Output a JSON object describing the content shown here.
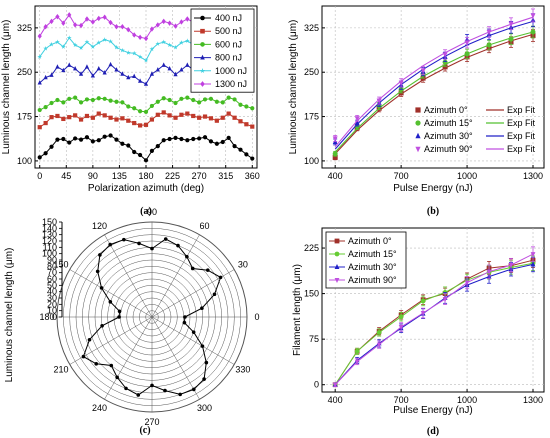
{
  "chart_data": [
    {
      "id": "a",
      "type": "line",
      "panel_label": "(a)",
      "xlabel": "Polarization azimuth (deg)",
      "ylabel": "Luminous channel length (μm)",
      "xlim": [
        -8,
        368
      ],
      "ylim": [
        88,
        362
      ],
      "xticks": [
        0,
        45,
        90,
        135,
        180,
        225,
        270,
        315,
        360
      ],
      "yticks": [
        100,
        175,
        250,
        325
      ],
      "grid": true,
      "legend_position": "top-right",
      "x": [
        0,
        10,
        20,
        30,
        40,
        50,
        60,
        70,
        80,
        90,
        100,
        110,
        120,
        130,
        140,
        150,
        160,
        170,
        180,
        190,
        200,
        210,
        220,
        230,
        240,
        250,
        260,
        270,
        280,
        290,
        300,
        310,
        320,
        330,
        340,
        350,
        360
      ],
      "series": [
        {
          "name": "400 nJ",
          "color": "#000000",
          "marker": "circle",
          "values": [
            106,
            113,
            124,
            136,
            137,
            131,
            138,
            136,
            140,
            133,
            135,
            141,
            143,
            136,
            129,
            126,
            115,
            110,
            101,
            117,
            125,
            135,
            137,
            139,
            137,
            135,
            137,
            138,
            140,
            133,
            129,
            132,
            139,
            125,
            119,
            111,
            104
          ]
        },
        {
          "name": "500 nJ",
          "color": "#c0392b",
          "marker": "square",
          "values": [
            157,
            164,
            174,
            176,
            171,
            174,
            177,
            170,
            176,
            173,
            180,
            177,
            173,
            170,
            172,
            168,
            164,
            160,
            161,
            170,
            178,
            182,
            177,
            173,
            178,
            180,
            176,
            173,
            175,
            172,
            168,
            173,
            180,
            173,
            167,
            162,
            158
          ]
        },
        {
          "name": "600 nJ",
          "color": "#44bb22",
          "marker": "circle",
          "values": [
            186,
            191,
            198,
            203,
            199,
            205,
            207,
            199,
            204,
            203,
            206,
            205,
            202,
            200,
            199,
            192,
            189,
            184,
            183,
            193,
            200,
            206,
            203,
            198,
            205,
            207,
            203,
            199,
            204,
            205,
            200,
            199,
            207,
            204,
            195,
            192,
            189
          ]
        },
        {
          "name": "800 nJ",
          "color": "#1f1fb4",
          "marker": "triangle",
          "values": [
            232,
            241,
            245,
            259,
            253,
            262,
            256,
            247,
            259,
            244,
            256,
            249,
            263,
            254,
            247,
            241,
            243,
            235,
            230,
            247,
            254,
            262,
            256,
            246,
            254,
            262,
            254,
            246,
            250,
            259,
            252,
            240,
            253,
            254,
            238,
            235,
            232
          ]
        },
        {
          "name": "1000 nJ",
          "color": "#40d0e0",
          "marker": "star",
          "values": [
            276,
            290,
            297,
            301,
            293,
            308,
            296,
            291,
            301,
            293,
            300,
            305,
            302,
            292,
            287,
            283,
            282,
            276,
            270,
            289,
            298,
            301,
            296,
            292,
            300,
            303,
            297,
            289,
            300,
            304,
            295,
            286,
            301,
            297,
            285,
            282,
            279
          ]
        },
        {
          "name": "1300 nJ",
          "color": "#c040e0",
          "marker": "diamond",
          "values": [
            311,
            327,
            336,
            344,
            333,
            347,
            330,
            329,
            340,
            335,
            341,
            343,
            334,
            327,
            327,
            322,
            313,
            309,
            307,
            323,
            330,
            336,
            333,
            328,
            335,
            340,
            335,
            327,
            335,
            340,
            331,
            325,
            338,
            333,
            323,
            319,
            312
          ]
        }
      ]
    },
    {
      "id": "b",
      "type": "scatter",
      "panel_label": "(b)",
      "xlabel": "Pulse Energy (nJ)",
      "ylabel": "Luminous channel length (μm)",
      "xlim": [
        340,
        1350
      ],
      "ylim": [
        88,
        362
      ],
      "xticks": [
        400,
        700,
        1000,
        1300
      ],
      "yticks": [
        100,
        175,
        250,
        325
      ],
      "grid": true,
      "legend_position": "bottom-right",
      "x": [
        400,
        500,
        600,
        700,
        800,
        900,
        1000,
        1100,
        1200,
        1300
      ],
      "series": [
        {
          "name": "Azimuth 0°",
          "color": "#a0302a",
          "marker": "square",
          "values": [
            106,
            156,
            189,
            215,
            240,
            259,
            276,
            291,
            301,
            312
          ],
          "err": [
            4,
            5,
            6,
            6,
            7,
            7,
            8,
            8,
            9,
            10
          ],
          "fit": [
            112,
            152,
            185,
            213,
            237,
            257,
            275,
            290,
            303,
            314
          ]
        },
        {
          "name": "Azimuth 15°",
          "color": "#55c030",
          "marker": "circle",
          "values": [
            112,
            158,
            193,
            221,
            247,
            267,
            281,
            296,
            306,
            318
          ],
          "err": [
            4,
            5,
            6,
            6,
            7,
            7,
            8,
            8,
            9,
            10
          ],
          "fit": [
            115,
            155,
            189,
            218,
            243,
            263,
            281,
            296,
            308,
            318
          ]
        },
        {
          "name": "Azimuth 30°",
          "color": "#2020c8",
          "marker": "triangle",
          "values": [
            132,
            164,
            198,
            228,
            251,
            276,
            305,
            314,
            326,
            338
          ],
          "err": [
            5,
            5,
            6,
            7,
            7,
            8,
            9,
            9,
            10,
            11
          ],
          "fit": [
            120,
            162,
            198,
            229,
            255,
            277,
            296,
            312,
            325,
            336
          ]
        },
        {
          "name": "Azimuth 90°",
          "color": "#c050e0",
          "marker": "triangle-down",
          "values": [
            138,
            172,
            202,
            232,
            253,
            280,
            300,
            318,
            332,
            346
          ],
          "err": [
            5,
            5,
            6,
            7,
            7,
            8,
            9,
            9,
            10,
            11
          ],
          "fit": [
            124,
            168,
            204,
            235,
            261,
            283,
            302,
            318,
            331,
            343
          ]
        }
      ],
      "legend_fit_label": "Exp Fit"
    },
    {
      "id": "c",
      "type": "polar",
      "panel_label": "(c)",
      "ylabel": "Luminous channel length (μm)",
      "radial_ticks": [
        0,
        10,
        20,
        30,
        40,
        50,
        60,
        70,
        80,
        90,
        100,
        110,
        120,
        130,
        140,
        150
      ],
      "angle_ticks": [
        0,
        30,
        60,
        90,
        120,
        150,
        180,
        210,
        240,
        270,
        300,
        330
      ],
      "rmax": 150,
      "angles": [
        0,
        10,
        20,
        30,
        40,
        50,
        60,
        70,
        80,
        90,
        100,
        110,
        120,
        130,
        140,
        150,
        160,
        170,
        180,
        190,
        200,
        210,
        220,
        230,
        240,
        250,
        260,
        270,
        280,
        290,
        300,
        310,
        320,
        330,
        340,
        350
      ],
      "values": [
        52,
        80,
        105,
        125,
        115,
        100,
        110,
        120,
        125,
        108,
        118,
        130,
        132,
        128,
        112,
        92,
        70,
        52,
        52,
        80,
        105,
        125,
        115,
        100,
        110,
        120,
        125,
        108,
        118,
        130,
        132,
        128,
        112,
        92,
        70,
        52
      ]
    },
    {
      "id": "d",
      "type": "scatter",
      "panel_label": "(d)",
      "xlabel": "Pulse Energy (nJ)",
      "ylabel": "Filament length (μm)",
      "xlim": [
        340,
        1350
      ],
      "ylim": [
        -12,
        258
      ],
      "xticks": [
        400,
        700,
        1000,
        1300
      ],
      "yticks": [
        0,
        75,
        150,
        225
      ],
      "grid": true,
      "legend_position": "top-left",
      "x": [
        400,
        500,
        600,
        700,
        800,
        900,
        1000,
        1100,
        1200,
        1300
      ],
      "series": [
        {
          "name": "Azimuth 0°",
          "color": "#a0302a",
          "marker": "square",
          "values": [
            0,
            55,
            88,
            115,
            140,
            150,
            174,
            192,
            196,
            205
          ],
          "err": [
            3,
            5,
            6,
            7,
            8,
            9,
            10,
            11,
            11,
            12
          ]
        },
        {
          "name": "Azimuth 15°",
          "color": "#66cc33",
          "marker": "circle",
          "values": [
            0,
            55,
            86,
            112,
            138,
            152,
            172,
            185,
            193,
            200
          ],
          "err": [
            3,
            5,
            6,
            7,
            8,
            9,
            10,
            11,
            11,
            12
          ]
        },
        {
          "name": "Azimuth 30°",
          "color": "#2020c8",
          "marker": "triangle",
          "values": [
            0,
            40,
            68,
            93,
            117,
            143,
            164,
            178,
            190,
            198
          ],
          "err": [
            3,
            5,
            6,
            7,
            8,
            9,
            10,
            11,
            11,
            12
          ]
        },
        {
          "name": "Azimuth 90°",
          "color": "#c050e0",
          "marker": "triangle-down",
          "values": [
            0,
            38,
            66,
            95,
            118,
            141,
            168,
            186,
            197,
            215
          ],
          "err": [
            3,
            5,
            6,
            7,
            8,
            9,
            10,
            11,
            11,
            12
          ]
        }
      ]
    }
  ]
}
